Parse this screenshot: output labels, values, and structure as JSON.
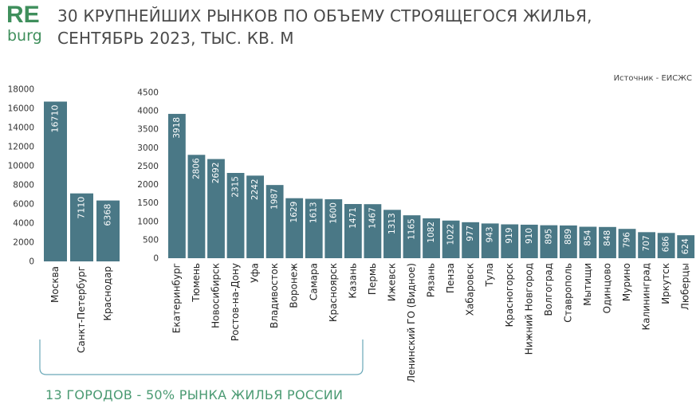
{
  "header": {
    "logo_top": "RE",
    "logo_bottom": "burg",
    "title_line1": "30 КРУПНЕЙШИХ РЫНКОВ ПО ОБЪЕМУ СТРОЯЩЕГОСЯ ЖИЛЬЯ,",
    "title_line2": "СЕНТЯБРЬ 2023, ТЫС. КВ. М"
  },
  "source": "Источник - ЕИСЖС",
  "caption": "13 ГОРОДОВ - 50% РЫНКА ЖИЛЬЯ РОССИИ",
  "colors": {
    "bar": "#4a7886",
    "brand": "#3f8f5c",
    "bracket": "#6aa8b8"
  },
  "chart_data": [
    {
      "type": "bar",
      "title": "",
      "ylim": [
        0,
        18000
      ],
      "yticks": [
        0,
        2000,
        4000,
        6000,
        8000,
        10000,
        12000,
        14000,
        16000,
        18000
      ],
      "categories": [
        "Москва",
        "Санкт-Петербург",
        "Краснодар"
      ],
      "values": [
        16710,
        7110,
        6368
      ]
    },
    {
      "type": "bar",
      "title": "",
      "ylim": [
        0,
        4500
      ],
      "yticks": [
        0,
        500,
        1000,
        1500,
        2000,
        2500,
        3000,
        3500,
        4000,
        4500
      ],
      "categories": [
        "Екатеринбург",
        "Тюмень",
        "Новосибирск",
        "Ростов-на-Дону",
        "Уфа",
        "Владивосток",
        "Воронеж",
        "Самара",
        "Красноярск",
        "Казань",
        "Пермь",
        "Ижевск",
        "Ленинский ГО (Видное)",
        "Рязань",
        "Пенза",
        "Хабаровск",
        "Тула",
        "Красногорск",
        "Нижний Новгород",
        "Волгоград",
        "Ставрополь",
        "Мытищи",
        "Одинцово",
        "Мурино",
        "Калининград",
        "Иркутск",
        "Люберцы"
      ],
      "values": [
        3918,
        2806,
        2692,
        2315,
        2242,
        1987,
        1629,
        1613,
        1600,
        1471,
        1467,
        1313,
        1165,
        1082,
        1022,
        977,
        943,
        919,
        910,
        895,
        889,
        854,
        848,
        796,
        707,
        686,
        624
      ]
    }
  ]
}
